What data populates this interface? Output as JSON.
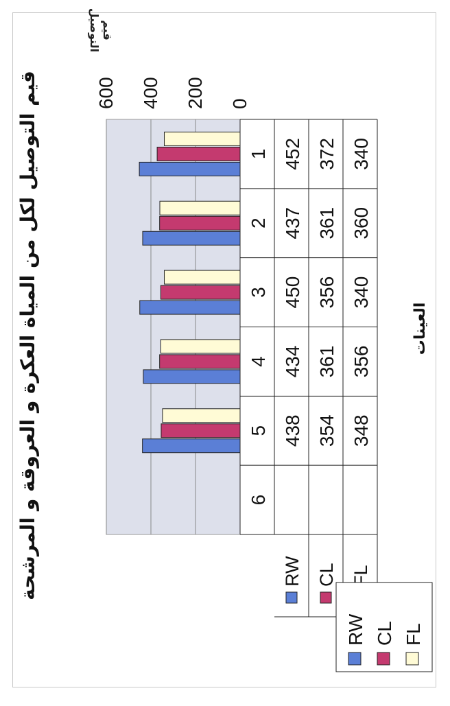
{
  "chart_data": {
    "type": "bar",
    "title": "قيم التوصيل لكل من المياة العكرة و العروقة و المرشحة",
    "xlabel": "العينات",
    "ylabel": "قيم التوصيل",
    "categories": [
      "1",
      "2",
      "3",
      "4",
      "5",
      "6"
    ],
    "series": [
      {
        "name": "RW",
        "values": [
          452,
          437,
          450,
          434,
          438,
          null
        ],
        "color": "#5b7fd6"
      },
      {
        "name": "CL",
        "values": [
          372,
          361,
          356,
          361,
          354,
          null
        ],
        "color": "#c43a6f"
      },
      {
        "name": "FL",
        "values": [
          340,
          360,
          340,
          356,
          348,
          null
        ],
        "color": "#fffbd6"
      }
    ],
    "yticks": [
      0,
      200,
      400,
      600
    ],
    "ylim": [
      0,
      600
    ],
    "grid": true,
    "legend": "left",
    "data_table": true,
    "plot_background": "#dde0eb"
  }
}
